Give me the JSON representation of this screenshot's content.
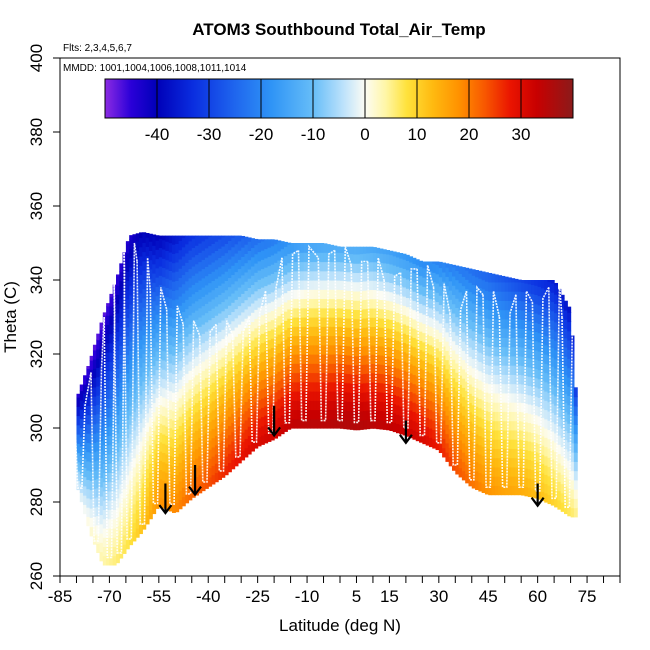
{
  "chart_data": {
    "type": "heatmap",
    "title": "ATOM3 Southbound Total_Air_Temp",
    "flights_label": "Flts: 2,3,4,5,6,7",
    "dates_label": "MMDD: 1001,1004,1006,1008,1011,1014",
    "xlabel": "Latitude (deg N)",
    "ylabel": "Theta (C)",
    "xlim": [
      -85,
      85
    ],
    "ylim": [
      260,
      400
    ],
    "x_tick_labels": [
      {
        "value": -85,
        "label": "-85"
      },
      {
        "value": -70,
        "label": "-70"
      },
      {
        "value": -55,
        "label": "-55"
      },
      {
        "value": -40,
        "label": "-40"
      },
      {
        "value": -25,
        "label": "-25"
      },
      {
        "value": -10,
        "label": "-10"
      },
      {
        "value": 5,
        "label": "5"
      },
      {
        "value": 15,
        "label": "15"
      },
      {
        "value": 30,
        "label": "30"
      },
      {
        "value": 45,
        "label": "45"
      },
      {
        "value": 60,
        "label": "60"
      },
      {
        "value": 75,
        "label": "75"
      }
    ],
    "x_minor_ticks": [
      -80,
      -75,
      -65,
      -60,
      -50,
      -45,
      -35,
      -30,
      -20,
      -15,
      -5,
      0,
      10,
      20,
      25,
      35,
      40,
      50,
      55,
      65,
      70,
      80,
      85
    ],
    "y_ticks": [
      {
        "value": 260,
        "label": "260"
      },
      {
        "value": 280,
        "label": "280"
      },
      {
        "value": 300,
        "label": "300"
      },
      {
        "value": 320,
        "label": "320"
      },
      {
        "value": 340,
        "label": "340"
      },
      {
        "value": 360,
        "label": "360"
      },
      {
        "value": 380,
        "label": "380"
      },
      {
        "value": 400,
        "label": "400"
      }
    ],
    "colorbar": {
      "range": [
        -50,
        40
      ],
      "tick_labels": [
        {
          "value": -40,
          "label": "-40"
        },
        {
          "value": -30,
          "label": "-30"
        },
        {
          "value": -20,
          "label": "-20"
        },
        {
          "value": -10,
          "label": "-10"
        },
        {
          "value": 0,
          "label": "0"
        },
        {
          "value": 10,
          "label": "10"
        },
        {
          "value": 20,
          "label": "20"
        },
        {
          "value": 30,
          "label": "30"
        }
      ],
      "stops": [
        {
          "value": -50,
          "color": "#8c2be3"
        },
        {
          "value": -45,
          "color": "#2a00d8"
        },
        {
          "value": -40,
          "color": "#0000b8"
        },
        {
          "value": -33,
          "color": "#0a2ee0"
        },
        {
          "value": -25,
          "color": "#1f66ee"
        },
        {
          "value": -18,
          "color": "#2f94f6"
        },
        {
          "value": -10,
          "color": "#66bdf8"
        },
        {
          "value": -4,
          "color": "#bfe3fb"
        },
        {
          "value": 0,
          "color": "#fcfcf4"
        },
        {
          "value": 4,
          "color": "#fff6a6"
        },
        {
          "value": 8,
          "color": "#ffe23c"
        },
        {
          "value": 13,
          "color": "#ffba10"
        },
        {
          "value": 18,
          "color": "#ff9200"
        },
        {
          "value": 23,
          "color": "#f85800"
        },
        {
          "value": 28,
          "color": "#ea1400"
        },
        {
          "value": 33,
          "color": "#c80000"
        },
        {
          "value": 37,
          "color": "#a60f0f"
        },
        {
          "value": 40,
          "color": "#8b1a1a"
        }
      ]
    },
    "coverage": [
      {
        "lat": -80,
        "theta_min": 285,
        "theta_max": 308
      },
      {
        "lat": -76,
        "theta_min": 272,
        "theta_max": 318
      },
      {
        "lat": -72,
        "theta_min": 263,
        "theta_max": 330
      },
      {
        "lat": -68,
        "theta_min": 263,
        "theta_max": 340
      },
      {
        "lat": -64,
        "theta_min": 268,
        "theta_max": 352
      },
      {
        "lat": -60,
        "theta_min": 272,
        "theta_max": 353
      },
      {
        "lat": -55,
        "theta_min": 279,
        "theta_max": 352
      },
      {
        "lat": -50,
        "theta_min": 277,
        "theta_max": 352
      },
      {
        "lat": -45,
        "theta_min": 281,
        "theta_max": 352
      },
      {
        "lat": -40,
        "theta_min": 284,
        "theta_max": 352
      },
      {
        "lat": -35,
        "theta_min": 287,
        "theta_max": 352
      },
      {
        "lat": -30,
        "theta_min": 291,
        "theta_max": 352
      },
      {
        "lat": -25,
        "theta_min": 295,
        "theta_max": 351
      },
      {
        "lat": -20,
        "theta_min": 297,
        "theta_max": 351
      },
      {
        "lat": -15,
        "theta_min": 300,
        "theta_max": 350
      },
      {
        "lat": -10,
        "theta_min": 300,
        "theta_max": 350
      },
      {
        "lat": -5,
        "theta_min": 300,
        "theta_max": 350
      },
      {
        "lat": 0,
        "theta_min": 300,
        "theta_max": 349
      },
      {
        "lat": 5,
        "theta_min": 299.5,
        "theta_max": 349
      },
      {
        "lat": 10,
        "theta_min": 300,
        "theta_max": 349
      },
      {
        "lat": 15,
        "theta_min": 299.5,
        "theta_max": 348
      },
      {
        "lat": 20,
        "theta_min": 298,
        "theta_max": 347
      },
      {
        "lat": 25,
        "theta_min": 296,
        "theta_max": 345
      },
      {
        "lat": 30,
        "theta_min": 294,
        "theta_max": 345
      },
      {
        "lat": 35,
        "theta_min": 288,
        "theta_max": 344
      },
      {
        "lat": 40,
        "theta_min": 284,
        "theta_max": 343
      },
      {
        "lat": 45,
        "theta_min": 282,
        "theta_max": 342
      },
      {
        "lat": 50,
        "theta_min": 282,
        "theta_max": 341
      },
      {
        "lat": 55,
        "theta_min": 282,
        "theta_max": 340
      },
      {
        "lat": 60,
        "theta_min": 281,
        "theta_max": 340
      },
      {
        "lat": 65,
        "theta_min": 279,
        "theta_max": 340
      },
      {
        "lat": 70,
        "theta_min": 276,
        "theta_max": 332
      },
      {
        "lat": 72,
        "theta_min": 276,
        "theta_max": 304
      }
    ],
    "temperature_field": [
      {
        "lat": -80,
        "t_low": -3,
        "t_high": -45
      },
      {
        "lat": -76,
        "t_low": 2,
        "t_high": -48
      },
      {
        "lat": -72,
        "t_low": 4,
        "t_high": -48
      },
      {
        "lat": -68,
        "t_low": 6,
        "t_high": -46
      },
      {
        "lat": -64,
        "t_low": 8,
        "t_high": -44
      },
      {
        "lat": -60,
        "t_low": 12,
        "t_high": -40
      },
      {
        "lat": -55,
        "t_low": 18,
        "t_high": -40
      },
      {
        "lat": -50,
        "t_low": 19,
        "t_high": -37
      },
      {
        "lat": -45,
        "t_low": 22,
        "t_high": -33
      },
      {
        "lat": -40,
        "t_low": 24,
        "t_high": -31
      },
      {
        "lat": -35,
        "t_low": 27,
        "t_high": -29
      },
      {
        "lat": -30,
        "t_low": 29,
        "t_high": -27
      },
      {
        "lat": -25,
        "t_low": 31,
        "t_high": -24
      },
      {
        "lat": -20,
        "t_low": 32,
        "t_high": -22
      },
      {
        "lat": -15,
        "t_low": 34,
        "t_high": -18
      },
      {
        "lat": -10,
        "t_low": 35,
        "t_high": -16
      },
      {
        "lat": -5,
        "t_low": 35,
        "t_high": -15
      },
      {
        "lat": 0,
        "t_low": 36,
        "t_high": -14
      },
      {
        "lat": 5,
        "t_low": 36,
        "t_high": -14
      },
      {
        "lat": 10,
        "t_low": 35,
        "t_high": -15
      },
      {
        "lat": 15,
        "t_low": 34,
        "t_high": -16
      },
      {
        "lat": 20,
        "t_low": 33,
        "t_high": -18
      },
      {
        "lat": 25,
        "t_low": 31,
        "t_high": -20
      },
      {
        "lat": 30,
        "t_low": 28,
        "t_high": -21
      },
      {
        "lat": 35,
        "t_low": 24,
        "t_high": -22
      },
      {
        "lat": 40,
        "t_low": 21,
        "t_high": -24
      },
      {
        "lat": 45,
        "t_low": 18,
        "t_high": -26
      },
      {
        "lat": 50,
        "t_low": 16,
        "t_high": -28
      },
      {
        "lat": 55,
        "t_low": 15,
        "t_high": -30
      },
      {
        "lat": 60,
        "t_low": 13,
        "t_high": -33
      },
      {
        "lat": 65,
        "t_low": 10,
        "t_high": -36
      },
      {
        "lat": 70,
        "t_low": 7,
        "t_high": -38
      },
      {
        "lat": 72,
        "t_low": 5,
        "t_high": -30
      }
    ],
    "flight_tracks": [
      {
        "lat": -79,
        "theta_top": 306
      },
      {
        "lat": -74,
        "theta_top": 316
      },
      {
        "lat": -70,
        "theta_top": 331
      },
      {
        "lat": -67,
        "theta_top": 342
      },
      {
        "lat": -64,
        "theta_top": 350
      },
      {
        "lat": -60,
        "theta_top": 346
      },
      {
        "lat": -56,
        "theta_top": 338
      },
      {
        "lat": -51,
        "theta_top": 333
      },
      {
        "lat": -46,
        "theta_top": 329
      },
      {
        "lat": -41,
        "theta_top": 326
      },
      {
        "lat": -36,
        "theta_top": 329
      },
      {
        "lat": -31,
        "theta_top": 326
      },
      {
        "lat": -26,
        "theta_top": 331
      },
      {
        "lat": -21,
        "theta_top": 338
      },
      {
        "lat": -16,
        "theta_top": 347
      },
      {
        "lat": -11,
        "theta_top": 349
      },
      {
        "lat": -5,
        "theta_top": 347
      },
      {
        "lat": 0,
        "theta_top": 349
      },
      {
        "lat": 5,
        "theta_top": 345
      },
      {
        "lat": 10,
        "theta_top": 346
      },
      {
        "lat": 15,
        "theta_top": 341
      },
      {
        "lat": 20,
        "theta_top": 343
      },
      {
        "lat": 25,
        "theta_top": 344
      },
      {
        "lat": 30,
        "theta_top": 339
      },
      {
        "lat": 35,
        "theta_top": 332
      },
      {
        "lat": 40,
        "theta_top": 338
      },
      {
        "lat": 45,
        "theta_top": 337
      },
      {
        "lat": 50,
        "theta_top": 331
      },
      {
        "lat": 55,
        "theta_top": 337
      },
      {
        "lat": 60,
        "theta_top": 335
      },
      {
        "lat": 65,
        "theta_top": 339
      },
      {
        "lat": 69,
        "theta_top": 331
      }
    ],
    "arrows": [
      {
        "lat": -53,
        "theta_top": 285,
        "theta_tip": 277
      },
      {
        "lat": -44,
        "theta_top": 290,
        "theta_tip": 282
      },
      {
        "lat": -20,
        "theta_top": 306,
        "theta_tip": 298
      },
      {
        "lat": 20,
        "theta_top": 302,
        "theta_tip": 296
      },
      {
        "lat": 60,
        "theta_top": 285,
        "theta_tip": 279
      }
    ]
  }
}
